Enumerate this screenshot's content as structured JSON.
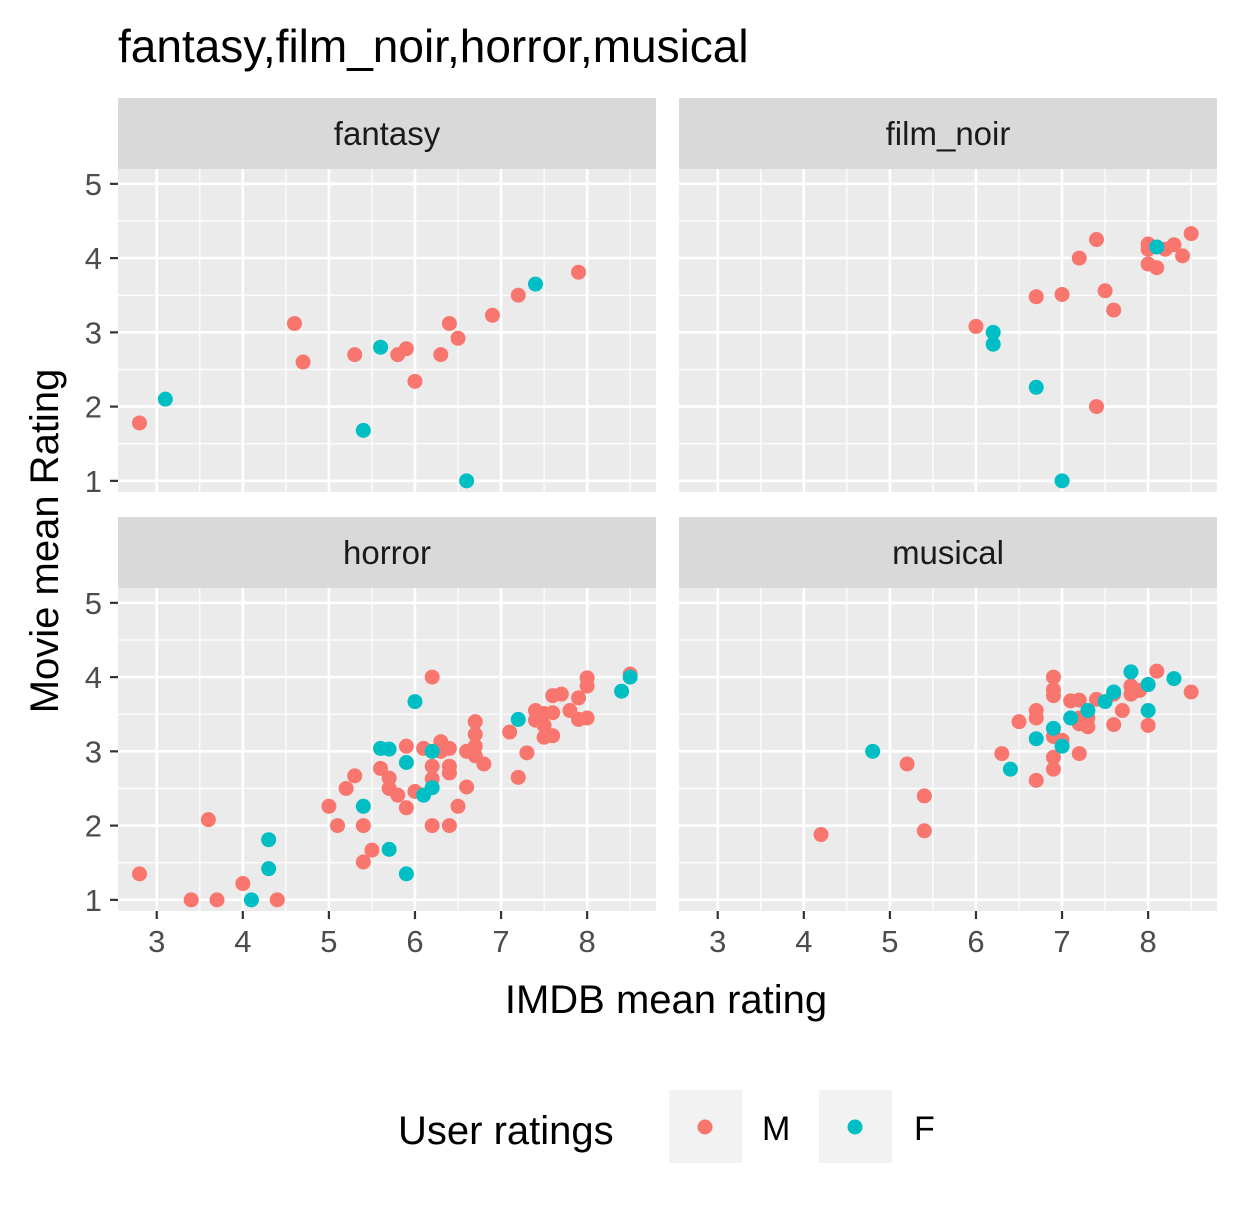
{
  "chart_data": {
    "type": "scatter",
    "title": "fantasy,film_noir,horror,musical",
    "xlabel": "IMDB mean rating",
    "ylabel": "Movie mean Rating",
    "xlim": [
      2.55,
      8.8
    ],
    "ylim": [
      0.85,
      5.2
    ],
    "x_ticks": [
      3,
      4,
      5,
      6,
      7,
      8
    ],
    "y_ticks": [
      1,
      2,
      3,
      4,
      5
    ],
    "grid": true,
    "legend": {
      "title": "User ratings",
      "position": "bottom",
      "entries": [
        {
          "label": "M",
          "color": "#F8766D"
        },
        {
          "label": "F",
          "color": "#00BFC4"
        }
      ]
    },
    "panels": [
      {
        "name": "fantasy",
        "series": [
          {
            "key": "M",
            "points": [
              [
                2.8,
                1.78
              ],
              [
                4.6,
                3.12
              ],
              [
                4.7,
                2.6
              ],
              [
                5.3,
                2.7
              ],
              [
                5.8,
                2.7
              ],
              [
                5.9,
                2.78
              ],
              [
                6.0,
                2.34
              ],
              [
                6.3,
                2.7
              ],
              [
                6.4,
                3.12
              ],
              [
                6.5,
                2.92
              ],
              [
                6.9,
                3.23
              ],
              [
                7.2,
                3.5
              ],
              [
                7.9,
                3.81
              ]
            ]
          },
          {
            "key": "F",
            "points": [
              [
                3.1,
                2.1
              ],
              [
                5.4,
                1.68
              ],
              [
                5.6,
                2.8
              ],
              [
                6.6,
                1.0
              ],
              [
                7.4,
                3.65
              ]
            ]
          }
        ]
      },
      {
        "name": "film_noir",
        "series": [
          {
            "key": "M",
            "points": [
              [
                6.0,
                3.08
              ],
              [
                6.7,
                3.48
              ],
              [
                7.0,
                3.51
              ],
              [
                7.2,
                4.0
              ],
              [
                7.4,
                4.25
              ],
              [
                7.4,
                2.0
              ],
              [
                7.5,
                3.56
              ],
              [
                7.6,
                3.3
              ],
              [
                8.0,
                4.19
              ],
              [
                8.0,
                4.12
              ],
              [
                8.0,
                3.92
              ],
              [
                8.1,
                3.87
              ],
              [
                8.2,
                4.12
              ],
              [
                8.3,
                4.18
              ],
              [
                8.4,
                4.03
              ],
              [
                8.5,
                4.33
              ]
            ]
          },
          {
            "key": "F",
            "points": [
              [
                6.2,
                3.0
              ],
              [
                6.2,
                2.84
              ],
              [
                6.7,
                2.26
              ],
              [
                7.0,
                1.0
              ],
              [
                8.1,
                4.15
              ]
            ]
          }
        ]
      },
      {
        "name": "horror",
        "series": [
          {
            "key": "M",
            "points": [
              [
                2.8,
                1.35
              ],
              [
                3.4,
                1.0
              ],
              [
                3.6,
                2.08
              ],
              [
                3.7,
                1.0
              ],
              [
                4.0,
                1.22
              ],
              [
                4.4,
                1.0
              ],
              [
                5.0,
                2.26
              ],
              [
                5.1,
                2.0
              ],
              [
                5.2,
                2.5
              ],
              [
                5.3,
                2.67
              ],
              [
                5.4,
                2.0
              ],
              [
                5.4,
                1.51
              ],
              [
                5.5,
                1.67
              ],
              [
                5.6,
                2.77
              ],
              [
                5.7,
                2.64
              ],
              [
                5.7,
                2.5
              ],
              [
                5.8,
                2.41
              ],
              [
                5.9,
                3.07
              ],
              [
                5.9,
                2.24
              ],
              [
                6.0,
                2.46
              ],
              [
                6.1,
                3.04
              ],
              [
                6.2,
                4.0
              ],
              [
                6.2,
                2.8
              ],
              [
                6.2,
                2.63
              ],
              [
                6.2,
                2.0
              ],
              [
                6.3,
                3.13
              ],
              [
                6.3,
                3.0
              ],
              [
                6.4,
                3.04
              ],
              [
                6.4,
                2.8
              ],
              [
                6.4,
                2.71
              ],
              [
                6.4,
                2.0
              ],
              [
                6.5,
                2.26
              ],
              [
                6.6,
                3.0
              ],
              [
                6.6,
                2.52
              ],
              [
                6.7,
                3.4
              ],
              [
                6.7,
                3.23
              ],
              [
                6.7,
                3.07
              ],
              [
                6.7,
                2.94
              ],
              [
                6.8,
                2.83
              ],
              [
                7.1,
                3.26
              ],
              [
                7.2,
                2.65
              ],
              [
                7.3,
                2.98
              ],
              [
                7.4,
                3.55
              ],
              [
                7.4,
                3.42
              ],
              [
                7.5,
                3.51
              ],
              [
                7.5,
                3.35
              ],
              [
                7.5,
                3.19
              ],
              [
                7.6,
                3.75
              ],
              [
                7.6,
                3.52
              ],
              [
                7.6,
                3.21
              ],
              [
                7.7,
                3.77
              ],
              [
                7.8,
                3.55
              ],
              [
                7.9,
                3.72
              ],
              [
                7.9,
                3.43
              ],
              [
                8.0,
                3.99
              ],
              [
                8.0,
                3.88
              ],
              [
                8.0,
                3.45
              ],
              [
                8.5,
                4.04
              ]
            ]
          },
          {
            "key": "F",
            "points": [
              [
                4.1,
                1.0
              ],
              [
                4.3,
                1.81
              ],
              [
                4.3,
                1.42
              ],
              [
                5.4,
                2.26
              ],
              [
                5.6,
                3.04
              ],
              [
                5.7,
                3.03
              ],
              [
                5.7,
                1.68
              ],
              [
                5.9,
                2.85
              ],
              [
                5.9,
                1.35
              ],
              [
                6.0,
                3.67
              ],
              [
                6.1,
                2.41
              ],
              [
                6.2,
                2.51
              ],
              [
                6.2,
                3.0
              ],
              [
                7.2,
                3.43
              ],
              [
                8.4,
                3.81
              ],
              [
                8.5,
                4.0
              ]
            ]
          }
        ]
      },
      {
        "name": "musical",
        "series": [
          {
            "key": "M",
            "points": [
              [
                4.2,
                1.88
              ],
              [
                5.2,
                2.83
              ],
              [
                5.4,
                2.4
              ],
              [
                5.4,
                1.93
              ],
              [
                6.3,
                2.97
              ],
              [
                6.5,
                3.4
              ],
              [
                6.7,
                3.55
              ],
              [
                6.7,
                3.45
              ],
              [
                6.7,
                2.61
              ],
              [
                6.9,
                4.0
              ],
              [
                6.9,
                3.83
              ],
              [
                6.9,
                3.75
              ],
              [
                6.9,
                3.2
              ],
              [
                6.9,
                2.92
              ],
              [
                6.9,
                2.76
              ],
              [
                7.0,
                3.15
              ],
              [
                7.1,
                3.68
              ],
              [
                7.2,
                3.69
              ],
              [
                7.2,
                3.45
              ],
              [
                7.2,
                3.37
              ],
              [
                7.2,
                2.97
              ],
              [
                7.3,
                3.45
              ],
              [
                7.3,
                3.33
              ],
              [
                7.4,
                3.7
              ],
              [
                7.6,
                3.77
              ],
              [
                7.6,
                3.36
              ],
              [
                7.7,
                3.55
              ],
              [
                7.8,
                3.88
              ],
              [
                7.8,
                3.77
              ],
              [
                7.9,
                3.82
              ],
              [
                8.0,
                3.9
              ],
              [
                8.0,
                3.35
              ],
              [
                8.1,
                4.08
              ],
              [
                8.5,
                3.8
              ]
            ]
          },
          {
            "key": "F",
            "points": [
              [
                4.8,
                3.0
              ],
              [
                6.4,
                2.76
              ],
              [
                6.7,
                3.17
              ],
              [
                6.9,
                3.31
              ],
              [
                7.0,
                3.07
              ],
              [
                7.1,
                3.45
              ],
              [
                7.3,
                3.55
              ],
              [
                7.5,
                3.67
              ],
              [
                7.6,
                3.8
              ],
              [
                7.8,
                4.07
              ],
              [
                8.0,
                3.9
              ],
              [
                8.0,
                3.55
              ],
              [
                8.3,
                3.98
              ]
            ]
          }
        ]
      }
    ]
  }
}
